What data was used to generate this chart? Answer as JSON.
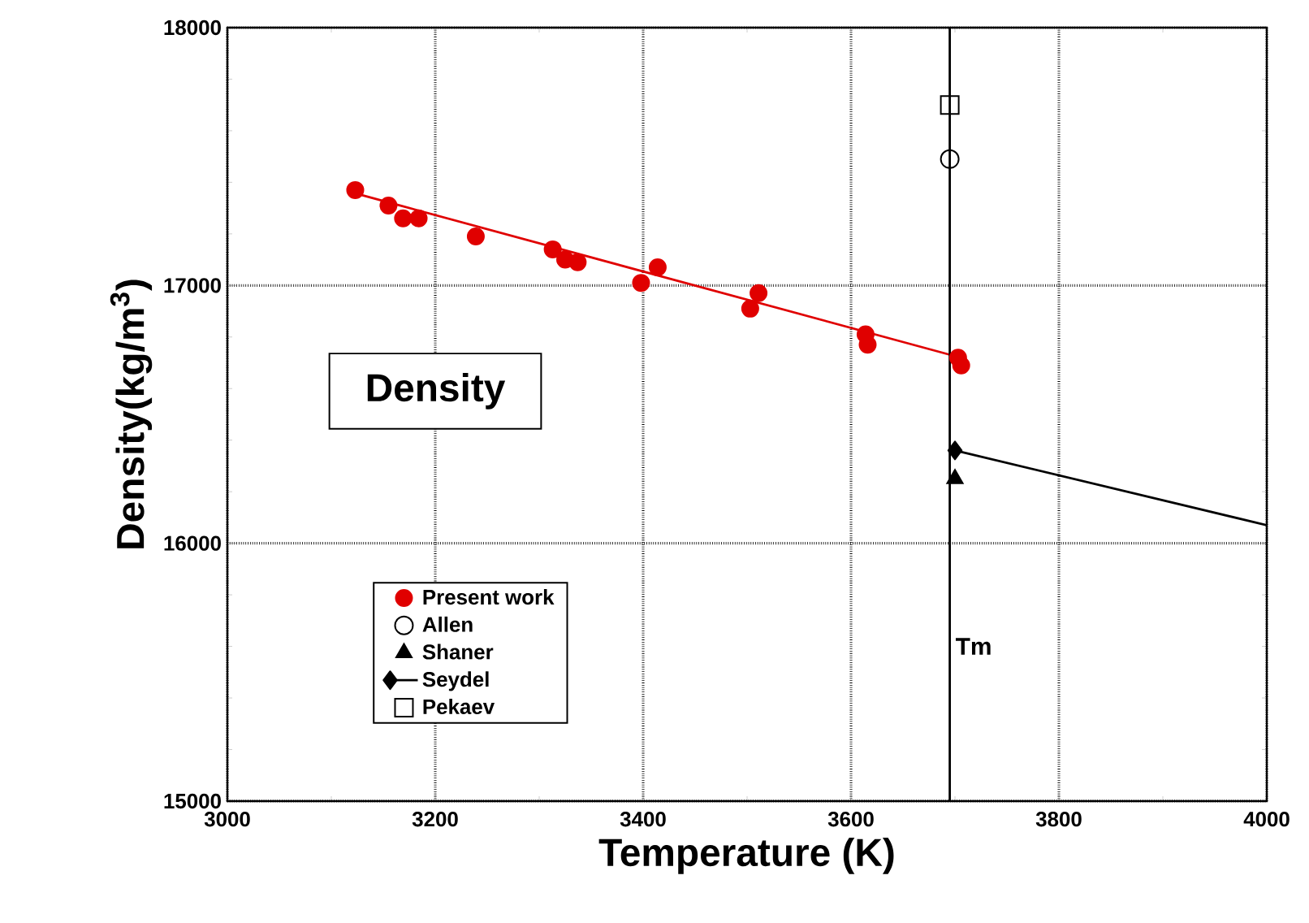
{
  "chart_data": {
    "type": "scatter",
    "xlabel": "Temperature (K)",
    "ylabel": "Density(kg/m$^{3}$)",
    "xlim": [
      3000,
      4000
    ],
    "ylim": [
      15000,
      18000
    ],
    "xticks": [
      3000,
      3200,
      3400,
      3600,
      3800,
      4000
    ],
    "yticks": [
      15000,
      16000,
      17000,
      18000
    ],
    "grid": true,
    "legend": "bottom left",
    "annotations": [
      "Density"
    ],
    "ref_lines": [
      {
        "axis": "x",
        "value": 3695,
        "label": "Tm"
      }
    ],
    "series": [
      {
        "name": "Present work",
        "color": "#e00000",
        "marker": "circle",
        "x": [
          3123,
          3155,
          3169,
          3184,
          3239,
          3313,
          3325,
          3337,
          3398,
          3414,
          3503,
          3511,
          3614,
          3616,
          3703,
          3706
        ],
        "values": [
          17370,
          17310,
          17260,
          17260,
          17190,
          17140,
          17100,
          17090,
          17010,
          17070,
          16910,
          16970,
          16810,
          16770,
          16720,
          16690
        ]
      },
      {
        "type": "line",
        "color": "#e00000",
        "marker": "none",
        "x": [
          3125,
          3710
        ],
        "values": [
          17355,
          16715
        ]
      },
      {
        "name": "Allen",
        "color": "#000000",
        "marker": "circle",
        "x": [
          3695
        ],
        "values": [
          17490
        ]
      },
      {
        "name": "Shaner",
        "color": "#000000",
        "marker": "triangle",
        "x": [
          3700
        ],
        "values": [
          16250
        ]
      },
      {
        "name": "Seydel",
        "type": "line",
        "color": "#000000",
        "marker": "diamond",
        "x": [
          3700,
          4000
        ],
        "values": [
          16360,
          16070
        ]
      },
      {
        "name": "Pekaev",
        "color": "#000000",
        "marker": "square",
        "x": [
          3695
        ],
        "values": [
          17700
        ]
      }
    ]
  }
}
